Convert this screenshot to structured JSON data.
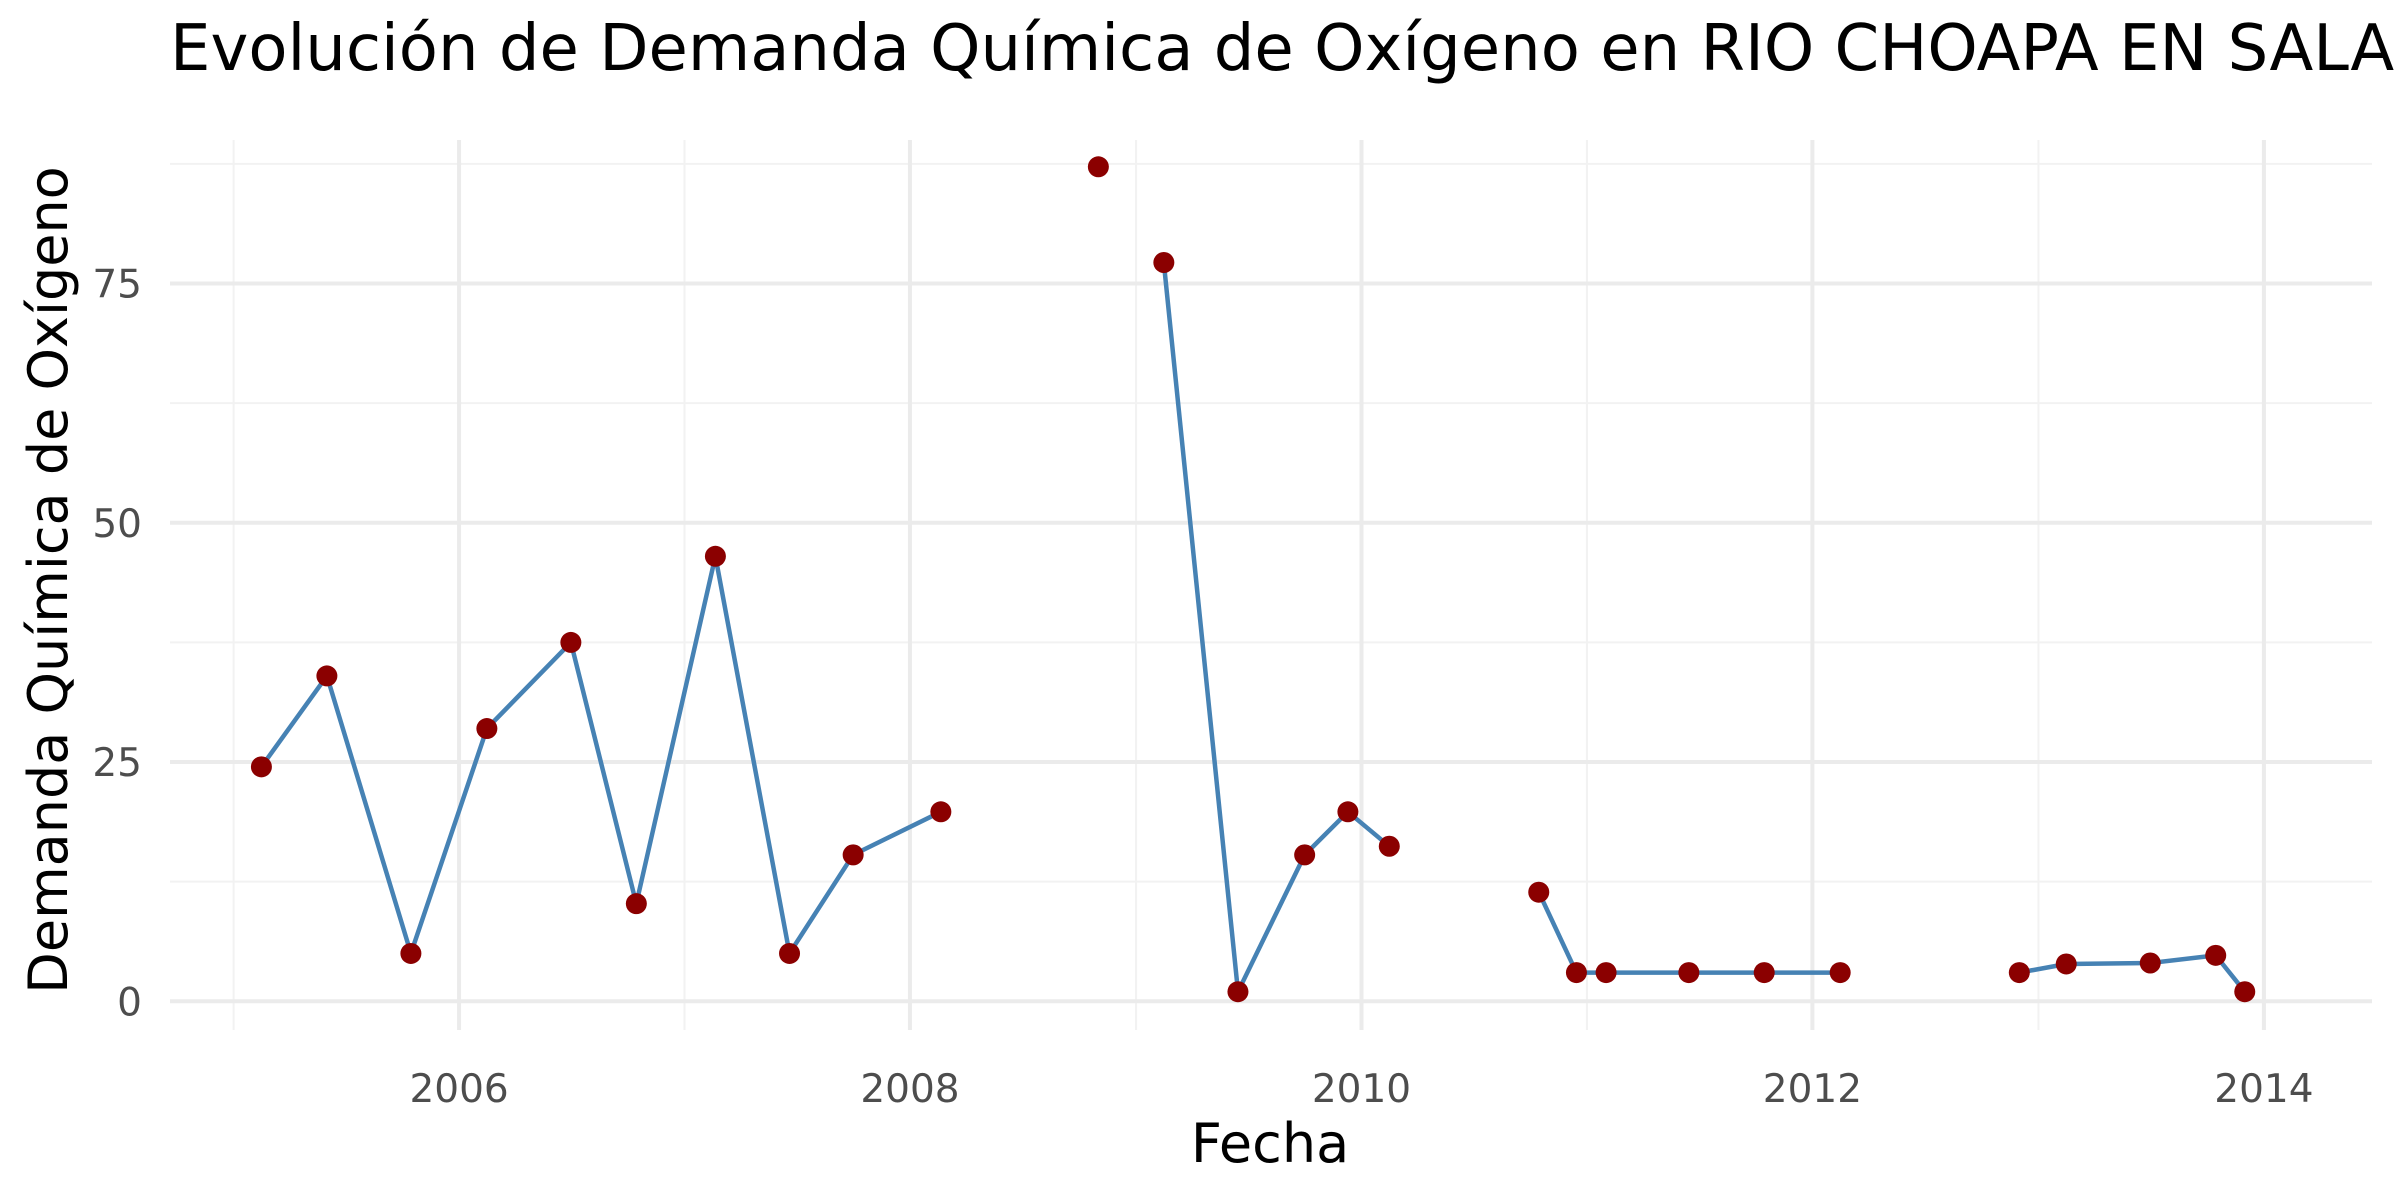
{
  "chart_data": {
    "type": "line",
    "title": "Evolución de Demanda Química de Oxígeno en RIO CHOAPA EN SALAMANCA",
    "xlabel": "Fecha",
    "ylabel": "Demanda Química de Oxígeno",
    "xlim": [
      "2004-09-20",
      "2014-06-25"
    ],
    "ylim": [
      -3,
      90
    ],
    "x_ticks": [
      {
        "value": "2006-01-01",
        "label": "2006"
      },
      {
        "value": "2008-01-01",
        "label": "2008"
      },
      {
        "value": "2010-01-01",
        "label": "2010"
      },
      {
        "value": "2012-01-01",
        "label": "2012"
      },
      {
        "value": "2014-01-01",
        "label": "2014"
      }
    ],
    "x_minor_ticks": [
      "2005-01-01",
      "2007-01-01",
      "2009-01-01",
      "2011-01-01",
      "2013-01-01"
    ],
    "y_ticks": [
      {
        "value": 0,
        "label": "0"
      },
      {
        "value": 25,
        "label": "25"
      },
      {
        "value": 50,
        "label": "50"
      },
      {
        "value": 75,
        "label": "75"
      }
    ],
    "y_minor_ticks": [
      12.5,
      37.5,
      62.5,
      87.5
    ],
    "grid": true,
    "legend": "none",
    "colors": {
      "line": "#4682b4",
      "point": "#8b0000",
      "grid_major": "#ebebeb",
      "grid_minor": "#f2f2f2"
    },
    "series": [
      {
        "points": [
          {
            "date": "2005-02-15",
            "value": 24.5
          },
          {
            "date": "2005-06-01",
            "value": 34
          },
          {
            "date": "2005-10-15",
            "value": 5
          },
          {
            "date": "2006-02-15",
            "value": 28.5
          },
          {
            "date": "2006-07-01",
            "value": 37.5
          },
          {
            "date": "2006-10-15",
            "value": 10.2
          },
          {
            "date": "2007-02-20",
            "value": 46.5
          },
          {
            "date": "2007-06-20",
            "value": 5
          },
          {
            "date": "2007-10-01",
            "value": 15.3
          },
          {
            "date": "2008-02-20",
            "value": 19.8
          },
          {
            "date": "2008-11-01",
            "value": 87.2
          },
          {
            "date": "2009-02-15",
            "value": 77.2
          },
          {
            "date": "2009-06-15",
            "value": 1
          },
          {
            "date": "2009-10-01",
            "value": 15.3
          },
          {
            "date": "2009-12-10",
            "value": 19.8
          },
          {
            "date": "2010-02-15",
            "value": 16.2
          },
          {
            "date": "2010-10-15",
            "value": 11.4
          },
          {
            "date": "2010-12-15",
            "value": 3
          },
          {
            "date": "2011-02-01",
            "value": 3
          },
          {
            "date": "2011-06-15",
            "value": 3
          },
          {
            "date": "2011-10-15",
            "value": 3
          },
          {
            "date": "2012-02-15",
            "value": 3
          },
          {
            "date": "2012-12-01",
            "value": 3
          },
          {
            "date": "2013-02-15",
            "value": 3.9
          },
          {
            "date": "2013-07-01",
            "value": 4
          },
          {
            "date": "2013-10-15",
            "value": 4.8
          },
          {
            "date": "2013-12-01",
            "value": 1
          }
        ],
        "line_segments": [
          [
            0,
            9
          ],
          [
            11,
            15
          ],
          [
            16,
            21
          ],
          [
            22,
            26
          ]
        ]
      }
    ]
  }
}
